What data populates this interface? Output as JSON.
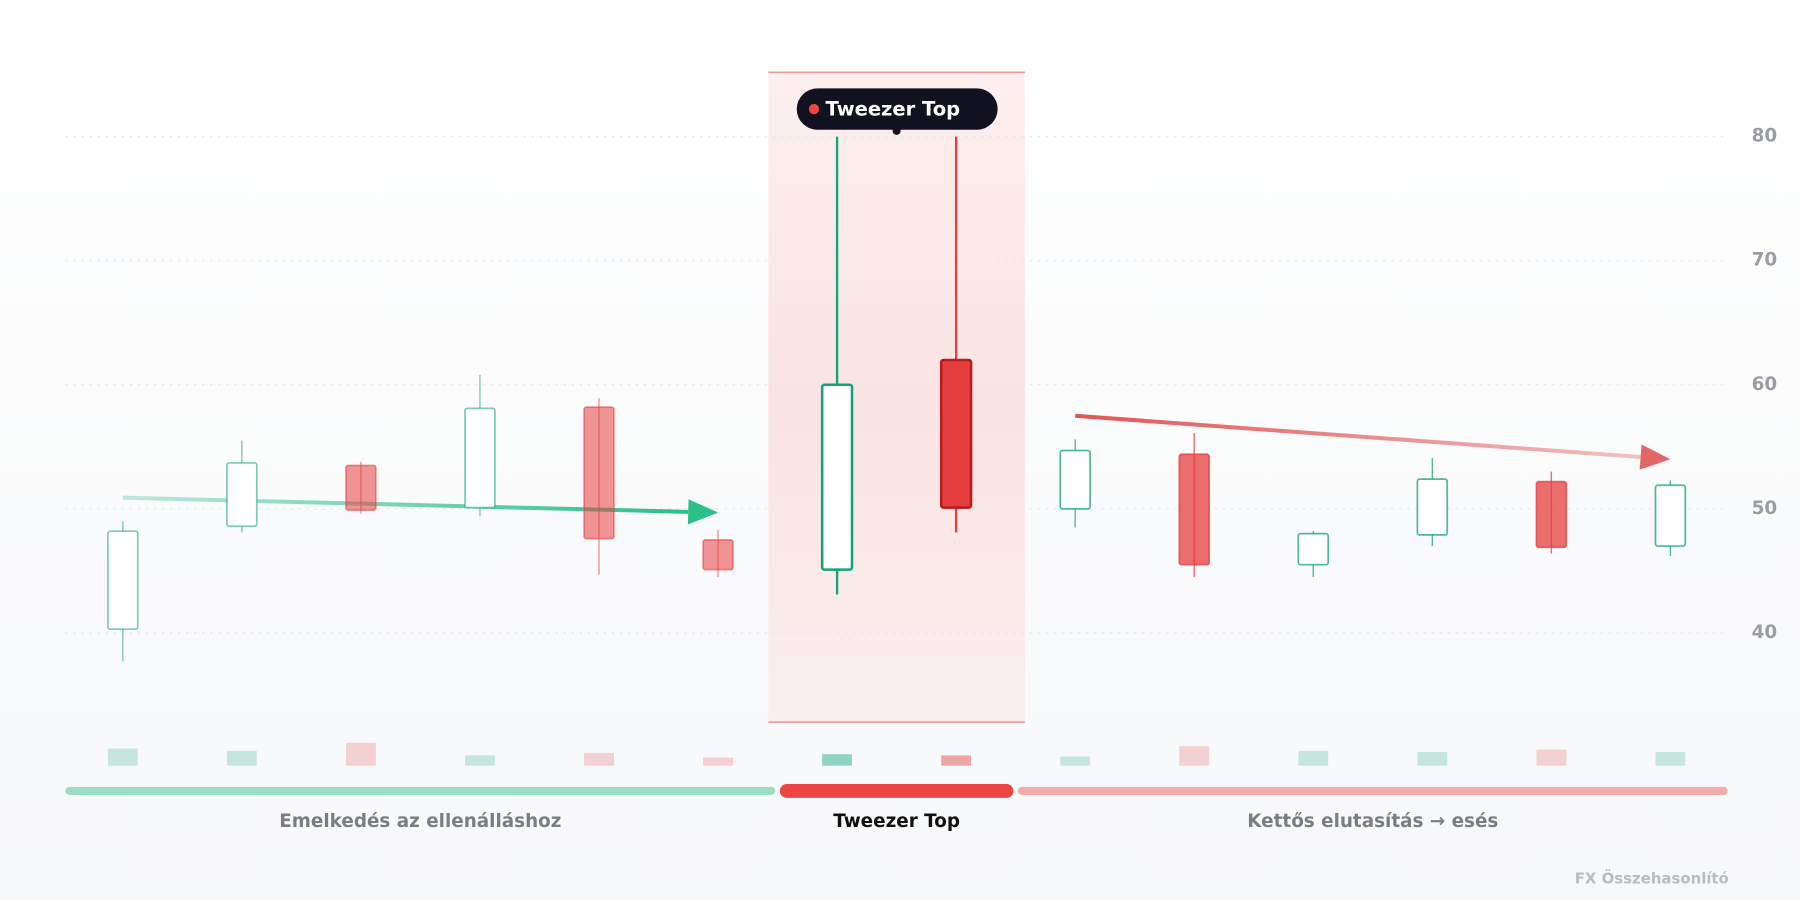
{
  "chart_data": {
    "type": "candlestick",
    "bull_color": "#12a37a",
    "bear_color": "#e53e3e",
    "ylim": [
      33,
      85
    ],
    "yticks": [
      40,
      50,
      60,
      70,
      80
    ],
    "grid": true,
    "phases": [
      {
        "label": "Emelkedés az ellenálláshoz",
        "color": "#9ddcc5",
        "opacity": 0.55,
        "trend": [
          50.9,
          49.7
        ],
        "trend_color": "#2bbf8a",
        "open": [
          40.3,
          48.6,
          53.5,
          50.1,
          58.2,
          47.5
        ],
        "high": [
          49.0,
          55.5,
          53.8,
          60.8,
          58.9,
          48.3
        ],
        "low": [
          37.7,
          48.1,
          49.6,
          49.4,
          44.7,
          44.5
        ],
        "close": [
          48.2,
          53.7,
          49.9,
          58.1,
          47.6,
          45.1
        ],
        "volume": [
          15,
          13,
          20,
          9,
          11,
          7
        ]
      },
      {
        "label": "Tweezer Top",
        "annotation": "Tweezer Top",
        "color": "#ef4444",
        "opacity": 1,
        "highlight": true,
        "open": [
          45.1,
          62.0
        ],
        "high": [
          80,
          80
        ],
        "low": [
          43.1,
          48.1
        ],
        "close": [
          60.0,
          50.1
        ],
        "volume": [
          10,
          9
        ]
      },
      {
        "label": "Kettős elutasítás → esés",
        "color": "#f3aaaa",
        "opacity": 0.75,
        "trend": [
          57.5,
          54.0
        ],
        "trend_color": "#e25555",
        "open": [
          50.0,
          54.4,
          45.5,
          47.9,
          52.2,
          47.0
        ],
        "high": [
          55.6,
          56.1,
          48.2,
          54.1,
          53.0,
          52.3
        ],
        "low": [
          48.5,
          44.5,
          44.5,
          47.0,
          46.4,
          46.2
        ],
        "close": [
          54.7,
          45.5,
          48.0,
          52.4,
          46.9,
          51.9
        ],
        "volume": [
          8,
          17,
          13,
          12,
          14,
          12
        ]
      }
    ]
  },
  "footer": "FX Összehasonlító"
}
